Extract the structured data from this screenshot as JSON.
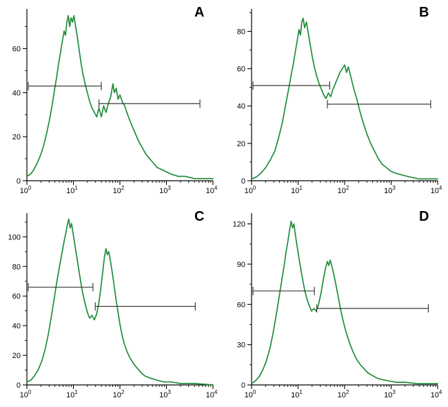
{
  "figure": {
    "background": "#ffffff",
    "curve_color": "#1f8c3b",
    "axis_color": "#000000",
    "gate_color": "#3a3a3a",
    "tick_label_color": "#000000"
  },
  "chart_data": [
    {
      "type": "line",
      "panel_label": "A",
      "x_scale": "log",
      "x_ticks": [
        "10^0",
        "10^1",
        "10^2",
        "10^3",
        "10^4"
      ],
      "x_range_decades": [
        0,
        4
      ],
      "ylim": [
        0,
        78
      ],
      "y_ticks": [
        0,
        20,
        40,
        60
      ],
      "y_minor_step": 10,
      "curve": [
        [
          0.0,
          2
        ],
        [
          0.08,
          3
        ],
        [
          0.15,
          5
        ],
        [
          0.22,
          8
        ],
        [
          0.3,
          12
        ],
        [
          0.36,
          16
        ],
        [
          0.42,
          21
        ],
        [
          0.48,
          27
        ],
        [
          0.54,
          34
        ],
        [
          0.6,
          42
        ],
        [
          0.64,
          47
        ],
        [
          0.68,
          53
        ],
        [
          0.72,
          58
        ],
        [
          0.76,
          63
        ],
        [
          0.8,
          68
        ],
        [
          0.83,
          66
        ],
        [
          0.86,
          72
        ],
        [
          0.89,
          75
        ],
        [
          0.92,
          70
        ],
        [
          0.95,
          74
        ],
        [
          0.98,
          72
        ],
        [
          1.01,
          75
        ],
        [
          1.04,
          71
        ],
        [
          1.08,
          66
        ],
        [
          1.12,
          60
        ],
        [
          1.16,
          54
        ],
        [
          1.2,
          49
        ],
        [
          1.25,
          44
        ],
        [
          1.3,
          40
        ],
        [
          1.35,
          36
        ],
        [
          1.4,
          33
        ],
        [
          1.45,
          31
        ],
        [
          1.5,
          29
        ],
        [
          1.55,
          33
        ],
        [
          1.6,
          29
        ],
        [
          1.65,
          34
        ],
        [
          1.7,
          31
        ],
        [
          1.75,
          35
        ],
        [
          1.8,
          38
        ],
        [
          1.85,
          44
        ],
        [
          1.88,
          40
        ],
        [
          1.92,
          42
        ],
        [
          1.96,
          37
        ],
        [
          2.0,
          39
        ],
        [
          2.05,
          36
        ],
        [
          2.1,
          34
        ],
        [
          2.15,
          31
        ],
        [
          2.2,
          28
        ],
        [
          2.26,
          25
        ],
        [
          2.32,
          22
        ],
        [
          2.4,
          18
        ],
        [
          2.48,
          15
        ],
        [
          2.56,
          12
        ],
        [
          2.64,
          10
        ],
        [
          2.72,
          8
        ],
        [
          2.8,
          6
        ],
        [
          2.9,
          5
        ],
        [
          3.0,
          4
        ],
        [
          3.1,
          3
        ],
        [
          3.25,
          2
        ],
        [
          3.4,
          2
        ],
        [
          3.6,
          1
        ],
        [
          3.8,
          1
        ],
        [
          4.0,
          1
        ]
      ],
      "gates": [
        {
          "y": 43,
          "x_log_start": 0.03,
          "x_log_end": 1.6
        },
        {
          "y": 35,
          "x_log_start": 1.55,
          "x_log_end": 3.72
        }
      ]
    },
    {
      "type": "line",
      "panel_label": "B",
      "x_scale": "log",
      "x_ticks": [
        "10^0",
        "10^1",
        "10^2",
        "10^3",
        "10^4"
      ],
      "x_range_decades": [
        0,
        4
      ],
      "ylim": [
        0,
        92
      ],
      "y_ticks": [
        0,
        20,
        40,
        60,
        80
      ],
      "y_minor_step": 10,
      "curve": [
        [
          0.0,
          1
        ],
        [
          0.1,
          2
        ],
        [
          0.2,
          4
        ],
        [
          0.3,
          7
        ],
        [
          0.4,
          11
        ],
        [
          0.5,
          16
        ],
        [
          0.58,
          23
        ],
        [
          0.66,
          31
        ],
        [
          0.72,
          39
        ],
        [
          0.78,
          47
        ],
        [
          0.84,
          55
        ],
        [
          0.9,
          63
        ],
        [
          0.94,
          69
        ],
        [
          0.98,
          75
        ],
        [
          1.02,
          81
        ],
        [
          1.05,
          78
        ],
        [
          1.08,
          85
        ],
        [
          1.11,
          87
        ],
        [
          1.14,
          82
        ],
        [
          1.18,
          85
        ],
        [
          1.22,
          79
        ],
        [
          1.26,
          73
        ],
        [
          1.3,
          67
        ],
        [
          1.35,
          61
        ],
        [
          1.4,
          56
        ],
        [
          1.45,
          52
        ],
        [
          1.5,
          49
        ],
        [
          1.55,
          46
        ],
        [
          1.6,
          44
        ],
        [
          1.65,
          47
        ],
        [
          1.7,
          45
        ],
        [
          1.75,
          49
        ],
        [
          1.8,
          52
        ],
        [
          1.85,
          55
        ],
        [
          1.9,
          58
        ],
        [
          1.95,
          60
        ],
        [
          2.0,
          62
        ],
        [
          2.04,
          58
        ],
        [
          2.08,
          61
        ],
        [
          2.12,
          57
        ],
        [
          2.16,
          53
        ],
        [
          2.2,
          49
        ],
        [
          2.26,
          44
        ],
        [
          2.32,
          38
        ],
        [
          2.4,
          31
        ],
        [
          2.48,
          25
        ],
        [
          2.56,
          20
        ],
        [
          2.64,
          16
        ],
        [
          2.72,
          12
        ],
        [
          2.8,
          9
        ],
        [
          2.9,
          7
        ],
        [
          3.0,
          5
        ],
        [
          3.1,
          4
        ],
        [
          3.25,
          3
        ],
        [
          3.4,
          2
        ],
        [
          3.6,
          1
        ],
        [
          3.8,
          1
        ],
        [
          4.0,
          1
        ]
      ],
      "gates": [
        {
          "y": 51,
          "x_log_start": 0.03,
          "x_log_end": 1.68
        },
        {
          "y": 41,
          "x_log_start": 1.63,
          "x_log_end": 3.85
        }
      ]
    },
    {
      "type": "line",
      "panel_label": "C",
      "x_scale": "log",
      "x_ticks": [
        "10^0",
        "10^1",
        "10^2",
        "10^3",
        "10^4"
      ],
      "x_range_decades": [
        0,
        4
      ],
      "ylim": [
        0,
        116
      ],
      "y_ticks": [
        0,
        20,
        40,
        60,
        80,
        100
      ],
      "y_minor_step": 10,
      "curve": [
        [
          0.0,
          2
        ],
        [
          0.08,
          3
        ],
        [
          0.16,
          6
        ],
        [
          0.24,
          10
        ],
        [
          0.32,
          16
        ],
        [
          0.4,
          25
        ],
        [
          0.46,
          34
        ],
        [
          0.52,
          45
        ],
        [
          0.58,
          57
        ],
        [
          0.64,
          69
        ],
        [
          0.7,
          80
        ],
        [
          0.76,
          90
        ],
        [
          0.8,
          97
        ],
        [
          0.84,
          103
        ],
        [
          0.87,
          108
        ],
        [
          0.9,
          112
        ],
        [
          0.93,
          106
        ],
        [
          0.96,
          109
        ],
        [
          1.0,
          101
        ],
        [
          1.04,
          93
        ],
        [
          1.08,
          85
        ],
        [
          1.12,
          77
        ],
        [
          1.16,
          69
        ],
        [
          1.2,
          62
        ],
        [
          1.25,
          55
        ],
        [
          1.3,
          49
        ],
        [
          1.35,
          45
        ],
        [
          1.4,
          47
        ],
        [
          1.45,
          44
        ],
        [
          1.5,
          48
        ],
        [
          1.55,
          56
        ],
        [
          1.6,
          68
        ],
        [
          1.64,
          79
        ],
        [
          1.67,
          87
        ],
        [
          1.7,
          92
        ],
        [
          1.73,
          88
        ],
        [
          1.76,
          90
        ],
        [
          1.8,
          83
        ],
        [
          1.84,
          75
        ],
        [
          1.88,
          66
        ],
        [
          1.92,
          57
        ],
        [
          1.96,
          49
        ],
        [
          2.0,
          41
        ],
        [
          2.05,
          33
        ],
        [
          2.1,
          27
        ],
        [
          2.16,
          22
        ],
        [
          2.22,
          18
        ],
        [
          2.3,
          14
        ],
        [
          2.38,
          11
        ],
        [
          2.46,
          8
        ],
        [
          2.54,
          6
        ],
        [
          2.62,
          5
        ],
        [
          2.72,
          4
        ],
        [
          2.82,
          3
        ],
        [
          2.95,
          2
        ],
        [
          3.1,
          2
        ],
        [
          3.3,
          1
        ],
        [
          3.6,
          1
        ],
        [
          4.0,
          0
        ]
      ],
      "gates": [
        {
          "y": 66,
          "x_log_start": 0.03,
          "x_log_end": 1.42
        },
        {
          "y": 53,
          "x_log_start": 1.47,
          "x_log_end": 3.62
        }
      ]
    },
    {
      "type": "line",
      "panel_label": "D",
      "x_scale": "log",
      "x_ticks": [
        "10^0",
        "10^1",
        "10^2",
        "10^3",
        "10^4"
      ],
      "x_range_decades": [
        0,
        4
      ],
      "ylim": [
        0,
        128
      ],
      "y_ticks": [
        0,
        30,
        60,
        90,
        120
      ],
      "y_minor_step": 15,
      "curve": [
        [
          0.0,
          1
        ],
        [
          0.08,
          3
        ],
        [
          0.16,
          6
        ],
        [
          0.24,
          11
        ],
        [
          0.32,
          18
        ],
        [
          0.4,
          28
        ],
        [
          0.46,
          38
        ],
        [
          0.52,
          50
        ],
        [
          0.58,
          63
        ],
        [
          0.64,
          76
        ],
        [
          0.7,
          89
        ],
        [
          0.74,
          99
        ],
        [
          0.78,
          107
        ],
        [
          0.82,
          116
        ],
        [
          0.85,
          122
        ],
        [
          0.88,
          117
        ],
        [
          0.91,
          120
        ],
        [
          0.95,
          110
        ],
        [
          0.99,
          101
        ],
        [
          1.04,
          90
        ],
        [
          1.09,
          80
        ],
        [
          1.14,
          71
        ],
        [
          1.19,
          64
        ],
        [
          1.24,
          59
        ],
        [
          1.29,
          55
        ],
        [
          1.34,
          57
        ],
        [
          1.39,
          55
        ],
        [
          1.44,
          60
        ],
        [
          1.49,
          68
        ],
        [
          1.54,
          78
        ],
        [
          1.59,
          87
        ],
        [
          1.63,
          92
        ],
        [
          1.66,
          89
        ],
        [
          1.69,
          93
        ],
        [
          1.73,
          88
        ],
        [
          1.77,
          82
        ],
        [
          1.81,
          75
        ],
        [
          1.86,
          66
        ],
        [
          1.91,
          57
        ],
        [
          1.96,
          49
        ],
        [
          2.01,
          42
        ],
        [
          2.07,
          35
        ],
        [
          2.13,
          29
        ],
        [
          2.19,
          24
        ],
        [
          2.26,
          19
        ],
        [
          2.34,
          15
        ],
        [
          2.42,
          12
        ],
        [
          2.5,
          9
        ],
        [
          2.6,
          7
        ],
        [
          2.7,
          5
        ],
        [
          2.8,
          4
        ],
        [
          2.95,
          3
        ],
        [
          3.1,
          2
        ],
        [
          3.3,
          2
        ],
        [
          3.55,
          1
        ],
        [
          3.8,
          1
        ],
        [
          4.0,
          1
        ]
      ],
      "gates": [
        {
          "y": 70,
          "x_log_start": 0.03,
          "x_log_end": 1.35
        },
        {
          "y": 57,
          "x_log_start": 1.4,
          "x_log_end": 3.8
        }
      ]
    }
  ]
}
